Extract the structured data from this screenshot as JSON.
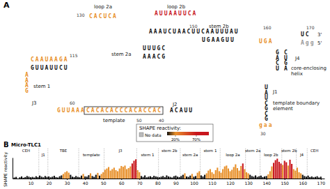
{
  "diagram": {
    "panel_label": "A",
    "sequences": [
      {
        "text": "CACUCA",
        "color": "#e8902a"
      },
      {
        "text": "AUUAAUUCA",
        "color": "#c8161d"
      },
      {
        "text": "AAAUCUAACUUCAAUUUAU",
        "color": "#111111"
      },
      {
        "text": "UGAAGUU",
        "color": "#111111"
      },
      {
        "text": "UUUGC",
        "color": "#111111"
      },
      {
        "text": "AAACG",
        "color": "#111111"
      },
      {
        "text": "CAAUAAGA",
        "color": "#e8902a"
      },
      {
        "text": "GUUAUUCU",
        "color": "#111111"
      },
      {
        "text": "AAAG",
        "color": "#e8902a"
      },
      {
        "text": "GUUAAA",
        "color": "#e8902a"
      },
      {
        "text": "CACACACCCACACCAC",
        "color": "#e8902a"
      },
      {
        "text": "ACAUU",
        "color": "#111111"
      },
      {
        "text": "UAUCGCG",
        "color": "#111111"
      },
      {
        "text": "gaa",
        "color": "#e8902a"
      },
      {
        "text": "UGA",
        "color": "#e8902a"
      },
      {
        "text": "GACU",
        "color": "#111111"
      },
      {
        "text": "CUGA",
        "color": "#111111"
      },
      {
        "text": "UC",
        "color": "#111111"
      },
      {
        "text": "Agg",
        "color": "#999999"
      }
    ],
    "labels": [
      "loop 2a",
      "loop 2b",
      "stem 2a",
      "stem 2b",
      "stem 1",
      "J3",
      "J2",
      "template",
      "core-enclosing helix",
      "template boundary element",
      "J1",
      "J4",
      "3'",
      "5'"
    ],
    "numbers": [
      130,
      150,
      160,
      170,
      115,
      60,
      50,
      40,
      30
    ]
  },
  "chart_data": {
    "type": "bar",
    "panel_label": "B",
    "title": "Micro-TLC1",
    "y_label": "SHAPE reactivity",
    "x": [
      1,
      2,
      3,
      4,
      5,
      6,
      7,
      8,
      9,
      10,
      11,
      12,
      13,
      14,
      15,
      16,
      17,
      18,
      19,
      20,
      21,
      22,
      23,
      24,
      25,
      26,
      27,
      28,
      29,
      30,
      31,
      32,
      33,
      34,
      35,
      36,
      37,
      38,
      39,
      40,
      41,
      42,
      43,
      44,
      45,
      46,
      47,
      48,
      49,
      50,
      51,
      52,
      53,
      54,
      55,
      56,
      57,
      58,
      59,
      60,
      61,
      62,
      63,
      64,
      65,
      66,
      67,
      68,
      69,
      70,
      71,
      72,
      73,
      74,
      75,
      76,
      77,
      78,
      79,
      80,
      81,
      82,
      83,
      84,
      85,
      86,
      87,
      88,
      89,
      90,
      91,
      92,
      93,
      94,
      95,
      96,
      97,
      98,
      99,
      100,
      101,
      102,
      103,
      104,
      105,
      106,
      107,
      108,
      109,
      110,
      111,
      112,
      113,
      114,
      115,
      116,
      117,
      118,
      119,
      120,
      121,
      122,
      123,
      124,
      125,
      126,
      127,
      128,
      129,
      130,
      131,
      132,
      133,
      134,
      135,
      136,
      137,
      138,
      139,
      140,
      141,
      142,
      143,
      144,
      145,
      146,
      147,
      148,
      149,
      150,
      151,
      152,
      153,
      154,
      155,
      156,
      157,
      158,
      159,
      160,
      161,
      162,
      163,
      164,
      165,
      166,
      167,
      168,
      169,
      170
    ],
    "values": [
      5,
      8,
      null,
      6,
      10,
      4,
      7,
      12,
      9,
      6,
      8,
      5,
      11,
      7,
      14,
      9,
      6,
      12,
      8,
      10,
      6,
      9,
      13,
      7,
      5,
      11,
      15,
      22,
      30,
      35,
      28,
      18,
      9,
      7,
      12,
      8,
      6,
      14,
      22,
      10,
      9,
      16,
      25,
      12,
      8,
      18,
      27,
      14,
      22,
      30,
      42,
      48,
      55,
      38,
      45,
      52,
      40,
      35,
      48,
      60,
      56,
      62,
      45,
      50,
      58,
      72,
      85,
      92,
      40,
      30,
      12,
      8,
      15,
      6,
      9,
      11,
      7,
      13,
      10,
      8,
      6,
      9,
      12,
      7,
      15,
      10,
      8,
      5,
      11,
      14,
      9,
      7,
      12,
      18,
      25,
      10,
      8,
      14,
      22,
      9,
      12,
      28,
      35,
      15,
      10,
      18,
      25,
      38,
      45,
      30,
      22,
      40,
      52,
      35,
      28,
      45,
      58,
      62,
      48,
      35,
      42,
      55,
      68,
      50,
      38,
      60,
      72,
      45,
      30,
      25,
      18,
      12,
      9,
      15,
      8,
      11,
      14,
      7,
      10,
      12,
      20,
      35,
      58,
      75,
      88,
      95,
      80,
      72,
      65,
      85,
      78,
      62,
      90,
      70,
      45,
      38,
      52,
      30,
      25,
      18,
      12,
      9,
      14,
      7,
      10,
      6,
      8,
      11,
      5,
      9
    ],
    "xlim": [
      0,
      172
    ],
    "xticks": [
      10,
      20,
      30,
      40,
      50,
      60,
      70,
      80,
      90,
      100,
      110,
      120,
      130,
      140,
      150,
      160,
      170
    ],
    "ylim": [
      0,
      100
    ],
    "yticks": [],
    "tick_labels": "x",
    "grid": false,
    "regions": [
      {
        "label": "CEH",
        "start": 1,
        "end": 14
      },
      {
        "label": "J1",
        "start": 15,
        "end": 19
      },
      {
        "label": "TBE",
        "start": 20,
        "end": 36
      },
      {
        "label": "template",
        "start": 37,
        "end": 50
      },
      {
        "label": "J3",
        "start": 51,
        "end": 68
      },
      {
        "label": "stem 1",
        "start": 69,
        "end": 80
      },
      {
        "label": "stem 2b",
        "start": 81,
        "end": 92
      },
      {
        "label": "stem 2a",
        "start": 93,
        "end": 103
      },
      {
        "label": "stem 1",
        "start": 104,
        "end": 114
      },
      {
        "label": "loop 2a",
        "start": 115,
        "end": 128
      },
      {
        "label": "stem 2a",
        "start": 129,
        "end": 136
      },
      {
        "label": "loop 2b",
        "start": 137,
        "end": 148
      },
      {
        "label": "stem 2b",
        "start": 149,
        "end": 156
      },
      {
        "label": "J4",
        "start": 157,
        "end": 162
      },
      {
        "label": "CEH",
        "start": 163,
        "end": 170
      }
    ],
    "color_scale": {
      "title": "SHAPE reactivity:",
      "no_data": "No data",
      "range": [
        0,
        100
      ],
      "ticks": [
        {
          "value": 20,
          "label": "20%"
        },
        {
          "value": 70,
          "label": "70%"
        }
      ],
      "colors": [
        "#111111",
        "#e8902a",
        "#c8161d"
      ]
    }
  }
}
